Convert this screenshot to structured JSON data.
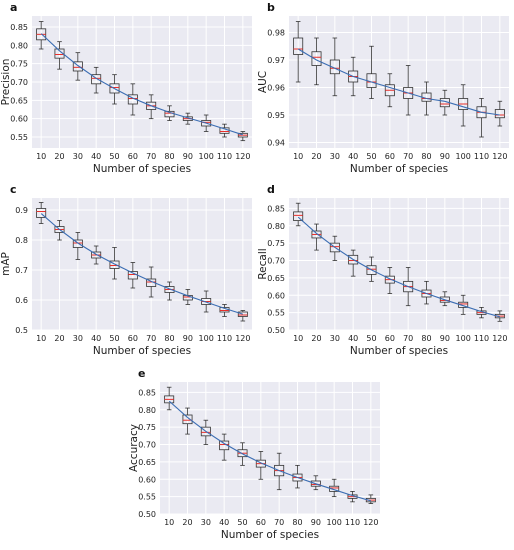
{
  "chart_data": [
    {
      "id": "a",
      "panel_label": "a",
      "type": "box",
      "xlabel": "Number of species",
      "ylabel": "Precision",
      "ylim": [
        0.52,
        0.88
      ],
      "yticks": [
        0.55,
        0.6,
        0.65,
        0.7,
        0.75,
        0.8,
        0.85
      ],
      "ytick_labels": [
        "0.55",
        "0.60",
        "0.65",
        "0.70",
        "0.75",
        "0.80",
        "0.85"
      ],
      "categories": [
        "10",
        "20",
        "30",
        "40",
        "50",
        "60",
        "70",
        "80",
        "90",
        "100",
        "110",
        "120"
      ],
      "boxes": [
        {
          "whislo": 0.79,
          "q1": 0.815,
          "med": 0.83,
          "q3": 0.845,
          "whishi": 0.865
        },
        {
          "whislo": 0.735,
          "q1": 0.765,
          "med": 0.775,
          "q3": 0.79,
          "whishi": 0.81
        },
        {
          "whislo": 0.705,
          "q1": 0.73,
          "med": 0.74,
          "q3": 0.755,
          "whishi": 0.78
        },
        {
          "whislo": 0.67,
          "q1": 0.695,
          "med": 0.71,
          "q3": 0.72,
          "whishi": 0.74
        },
        {
          "whislo": 0.64,
          "q1": 0.67,
          "med": 0.685,
          "q3": 0.695,
          "whishi": 0.72
        },
        {
          "whislo": 0.61,
          "q1": 0.64,
          "med": 0.655,
          "q3": 0.665,
          "whishi": 0.695
        },
        {
          "whislo": 0.6,
          "q1": 0.625,
          "med": 0.635,
          "q3": 0.645,
          "whishi": 0.665
        },
        {
          "whislo": 0.595,
          "q1": 0.605,
          "med": 0.615,
          "q3": 0.62,
          "whishi": 0.635
        },
        {
          "whislo": 0.585,
          "q1": 0.595,
          "med": 0.6,
          "q3": 0.605,
          "whishi": 0.615
        },
        {
          "whislo": 0.565,
          "q1": 0.58,
          "med": 0.59,
          "q3": 0.595,
          "whishi": 0.61
        },
        {
          "whislo": 0.55,
          "q1": 0.56,
          "med": 0.565,
          "q3": 0.575,
          "whishi": 0.585
        },
        {
          "whislo": 0.54,
          "q1": 0.55,
          "med": 0.555,
          "q3": 0.56,
          "whishi": 0.565
        }
      ],
      "trend": [
        0.832,
        0.785,
        0.745,
        0.71,
        0.682,
        0.656,
        0.635,
        0.617,
        0.602,
        0.588,
        0.572,
        0.556
      ]
    },
    {
      "id": "b",
      "panel_label": "b",
      "type": "box",
      "xlabel": "Number of species",
      "ylabel": "AUC",
      "ylim": [
        0.938,
        0.986
      ],
      "yticks": [
        0.94,
        0.95,
        0.96,
        0.97,
        0.98
      ],
      "ytick_labels": [
        "0.94",
        "0.95",
        "0.96",
        "0.97",
        "0.98"
      ],
      "categories": [
        "10",
        "20",
        "30",
        "40",
        "50",
        "60",
        "70",
        "80",
        "90",
        "100",
        "110",
        "120"
      ],
      "boxes": [
        {
          "whislo": 0.962,
          "q1": 0.972,
          "med": 0.974,
          "q3": 0.978,
          "whishi": 0.984
        },
        {
          "whislo": 0.961,
          "q1": 0.968,
          "med": 0.971,
          "q3": 0.973,
          "whishi": 0.978
        },
        {
          "whislo": 0.957,
          "q1": 0.965,
          "med": 0.967,
          "q3": 0.97,
          "whishi": 0.978
        },
        {
          "whislo": 0.957,
          "q1": 0.962,
          "med": 0.964,
          "q3": 0.966,
          "whishi": 0.971
        },
        {
          "whislo": 0.956,
          "q1": 0.96,
          "med": 0.962,
          "q3": 0.965,
          "whishi": 0.975
        },
        {
          "whislo": 0.953,
          "q1": 0.957,
          "med": 0.959,
          "q3": 0.961,
          "whishi": 0.965
        },
        {
          "whislo": 0.95,
          "q1": 0.956,
          "med": 0.958,
          "q3": 0.96,
          "whishi": 0.968
        },
        {
          "whislo": 0.95,
          "q1": 0.955,
          "med": 0.956,
          "q3": 0.958,
          "whishi": 0.962
        },
        {
          "whislo": 0.95,
          "q1": 0.953,
          "med": 0.954,
          "q3": 0.956,
          "whishi": 0.959
        },
        {
          "whislo": 0.946,
          "q1": 0.952,
          "med": 0.954,
          "q3": 0.956,
          "whishi": 0.961
        },
        {
          "whislo": 0.942,
          "q1": 0.949,
          "med": 0.951,
          "q3": 0.953,
          "whishi": 0.956
        },
        {
          "whislo": 0.946,
          "q1": 0.949,
          "med": 0.95,
          "q3": 0.952,
          "whishi": 0.955
        }
      ],
      "trend": [
        0.974,
        0.97,
        0.967,
        0.964,
        0.962,
        0.96,
        0.958,
        0.956,
        0.955,
        0.953,
        0.951,
        0.95
      ]
    },
    {
      "id": "c",
      "panel_label": "c",
      "type": "box",
      "xlabel": "Number of species",
      "ylabel": "mAP",
      "ylim": [
        0.5,
        0.94
      ],
      "yticks": [
        0.5,
        0.6,
        0.7,
        0.8,
        0.9
      ],
      "ytick_labels": [
        "0.5",
        "0.6",
        "0.7",
        "0.8",
        "0.9"
      ],
      "categories": [
        "10",
        "20",
        "30",
        "40",
        "50",
        "60",
        "70",
        "80",
        "90",
        "100",
        "110",
        "120"
      ],
      "boxes": [
        {
          "whislo": 0.855,
          "q1": 0.875,
          "med": 0.895,
          "q3": 0.905,
          "whishi": 0.925
        },
        {
          "whislo": 0.8,
          "q1": 0.825,
          "med": 0.835,
          "q3": 0.845,
          "whishi": 0.865
        },
        {
          "whislo": 0.735,
          "q1": 0.775,
          "med": 0.79,
          "q3": 0.8,
          "whishi": 0.825
        },
        {
          "whislo": 0.72,
          "q1": 0.74,
          "med": 0.75,
          "q3": 0.76,
          "whishi": 0.78
        },
        {
          "whislo": 0.67,
          "q1": 0.705,
          "med": 0.715,
          "q3": 0.73,
          "whishi": 0.775
        },
        {
          "whislo": 0.64,
          "q1": 0.67,
          "med": 0.685,
          "q3": 0.695,
          "whishi": 0.725
        },
        {
          "whislo": 0.61,
          "q1": 0.645,
          "med": 0.66,
          "q3": 0.67,
          "whishi": 0.71
        },
        {
          "whislo": 0.6,
          "q1": 0.625,
          "med": 0.635,
          "q3": 0.645,
          "whishi": 0.66
        },
        {
          "whislo": 0.585,
          "q1": 0.6,
          "med": 0.61,
          "q3": 0.615,
          "whishi": 0.635
        },
        {
          "whislo": 0.56,
          "q1": 0.585,
          "med": 0.595,
          "q3": 0.605,
          "whishi": 0.63
        },
        {
          "whislo": 0.545,
          "q1": 0.56,
          "med": 0.565,
          "q3": 0.575,
          "whishi": 0.585
        },
        {
          "whislo": 0.53,
          "q1": 0.545,
          "med": 0.55,
          "q3": 0.56,
          "whishi": 0.565
        }
      ],
      "trend": [
        0.888,
        0.835,
        0.79,
        0.752,
        0.72,
        0.69,
        0.662,
        0.637,
        0.614,
        0.593,
        0.572,
        0.553
      ]
    },
    {
      "id": "d",
      "panel_label": "d",
      "type": "box",
      "xlabel": "Number of species",
      "ylabel": "Recall",
      "ylim": [
        0.5,
        0.88
      ],
      "yticks": [
        0.5,
        0.55,
        0.6,
        0.65,
        0.7,
        0.75,
        0.8,
        0.85
      ],
      "ytick_labels": [
        "0.50",
        "0.55",
        "0.60",
        "0.65",
        "0.70",
        "0.75",
        "0.80",
        "0.85"
      ],
      "categories": [
        "10",
        "20",
        "30",
        "40",
        "50",
        "60",
        "70",
        "80",
        "90",
        "100",
        "110",
        "120"
      ],
      "boxes": [
        {
          "whislo": 0.8,
          "q1": 0.815,
          "med": 0.83,
          "q3": 0.84,
          "whishi": 0.865
        },
        {
          "whislo": 0.73,
          "q1": 0.765,
          "med": 0.775,
          "q3": 0.785,
          "whishi": 0.805
        },
        {
          "whislo": 0.7,
          "q1": 0.725,
          "med": 0.74,
          "q3": 0.75,
          "whishi": 0.77
        },
        {
          "whislo": 0.655,
          "q1": 0.69,
          "med": 0.7,
          "q3": 0.715,
          "whishi": 0.73
        },
        {
          "whislo": 0.64,
          "q1": 0.66,
          "med": 0.675,
          "q3": 0.685,
          "whishi": 0.71
        },
        {
          "whislo": 0.605,
          "q1": 0.635,
          "med": 0.645,
          "q3": 0.655,
          "whishi": 0.68
        },
        {
          "whislo": 0.57,
          "q1": 0.61,
          "med": 0.625,
          "q3": 0.64,
          "whishi": 0.68
        },
        {
          "whislo": 0.575,
          "q1": 0.595,
          "med": 0.605,
          "q3": 0.615,
          "whishi": 0.64
        },
        {
          "whislo": 0.57,
          "q1": 0.58,
          "med": 0.585,
          "q3": 0.595,
          "whishi": 0.61
        },
        {
          "whislo": 0.545,
          "q1": 0.565,
          "med": 0.575,
          "q3": 0.58,
          "whishi": 0.6
        },
        {
          "whislo": 0.535,
          "q1": 0.545,
          "med": 0.55,
          "q3": 0.555,
          "whishi": 0.565
        },
        {
          "whislo": 0.525,
          "q1": 0.535,
          "med": 0.54,
          "q3": 0.545,
          "whishi": 0.555
        }
      ],
      "trend": [
        0.825,
        0.778,
        0.738,
        0.703,
        0.673,
        0.647,
        0.625,
        0.605,
        0.587,
        0.57,
        0.553,
        0.538
      ]
    },
    {
      "id": "e",
      "panel_label": "e",
      "type": "box",
      "xlabel": "Number of species",
      "ylabel": "Accuracy",
      "ylim": [
        0.5,
        0.88
      ],
      "yticks": [
        0.5,
        0.55,
        0.6,
        0.65,
        0.7,
        0.75,
        0.8,
        0.85
      ],
      "ytick_labels": [
        "0.50",
        "0.55",
        "0.60",
        "0.65",
        "0.70",
        "0.75",
        "0.80",
        "0.85"
      ],
      "categories": [
        "10",
        "20",
        "30",
        "40",
        "50",
        "60",
        "70",
        "80",
        "90",
        "100",
        "110",
        "120"
      ],
      "boxes": [
        {
          "whislo": 0.8,
          "q1": 0.82,
          "med": 0.83,
          "q3": 0.84,
          "whishi": 0.865
        },
        {
          "whislo": 0.73,
          "q1": 0.76,
          "med": 0.77,
          "q3": 0.785,
          "whishi": 0.805
        },
        {
          "whislo": 0.7,
          "q1": 0.725,
          "med": 0.735,
          "q3": 0.75,
          "whishi": 0.77
        },
        {
          "whislo": 0.655,
          "q1": 0.685,
          "med": 0.7,
          "q3": 0.71,
          "whishi": 0.73
        },
        {
          "whislo": 0.64,
          "q1": 0.665,
          "med": 0.675,
          "q3": 0.685,
          "whishi": 0.705
        },
        {
          "whislo": 0.6,
          "q1": 0.635,
          "med": 0.645,
          "q3": 0.655,
          "whishi": 0.68
        },
        {
          "whislo": 0.57,
          "q1": 0.61,
          "med": 0.625,
          "q3": 0.64,
          "whishi": 0.675
        },
        {
          "whislo": 0.575,
          "q1": 0.595,
          "med": 0.605,
          "q3": 0.615,
          "whishi": 0.64
        },
        {
          "whislo": 0.57,
          "q1": 0.58,
          "med": 0.585,
          "q3": 0.595,
          "whishi": 0.61
        },
        {
          "whislo": 0.55,
          "q1": 0.565,
          "med": 0.575,
          "q3": 0.58,
          "whishi": 0.6
        },
        {
          "whislo": 0.535,
          "q1": 0.545,
          "med": 0.55,
          "q3": 0.555,
          "whishi": 0.565
        },
        {
          "whislo": 0.53,
          "q1": 0.535,
          "med": 0.54,
          "q3": 0.545,
          "whishi": 0.555
        }
      ],
      "trend": [
        0.825,
        0.778,
        0.738,
        0.703,
        0.673,
        0.647,
        0.625,
        0.605,
        0.587,
        0.57,
        0.553,
        0.538
      ]
    }
  ],
  "colors": {
    "plot_background": "#eaeaf2",
    "grid": "#ffffff",
    "box": "#333333",
    "median": "#e8302b",
    "trend": "#3b6db3"
  }
}
